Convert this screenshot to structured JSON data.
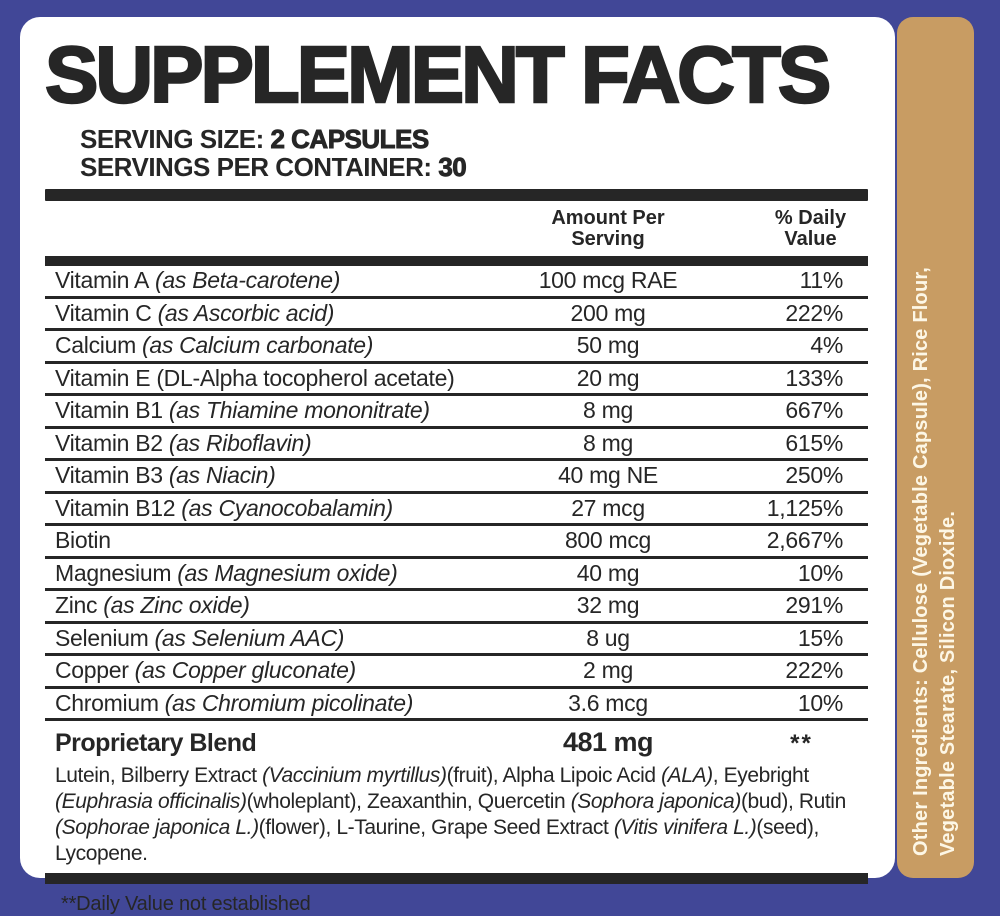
{
  "colors": {
    "border_blue": "#414797",
    "strip_tan": "#C89C63",
    "ink": "#262626",
    "card_bg": "#FFFFFF",
    "strip_text": "#FDF7E6"
  },
  "header": {
    "title": "SUPPLEMENT FACTS",
    "serving_size": [
      {
        "text": "SERVING SIZE: "
      },
      {
        "text": "2 CAPSULES",
        "bold": true
      }
    ],
    "servings_per_container": [
      {
        "text": "SERVINGS PER CONTAINER: "
      },
      {
        "text": "30",
        "bold": true
      }
    ]
  },
  "table": {
    "col_amount": "Amount Per\nServing",
    "col_daily_value": "% Daily\nValue",
    "rows": [
      {
        "name": "Vitamin A",
        "qualifier": "(as Beta-carotene)",
        "amount": "100 mcg RAE",
        "dv": "11%"
      },
      {
        "name": "Vitamin C",
        "qualifier": "(as Ascorbic acid)",
        "amount": "200 mg",
        "dv": "222%"
      },
      {
        "name": "Calcium",
        "qualifier": "(as Calcium carbonate)",
        "amount": "50 mg",
        "dv": "4%"
      },
      {
        "name": "Vitamin E",
        "qualifier_plain": "(DL-Alpha tocopherol acetate)",
        "amount": "20 mg",
        "dv": "133%"
      },
      {
        "name": "Vitamin B1",
        "qualifier": "(as Thiamine mononitrate)",
        "amount": "8 mg",
        "dv": "667%"
      },
      {
        "name": "Vitamin B2",
        "qualifier": "(as Riboflavin)",
        "amount": "8 mg",
        "dv": "615%"
      },
      {
        "name": "Vitamin B3",
        "qualifier": "(as Niacin)",
        "amount": "40 mg NE",
        "dv": "250%"
      },
      {
        "name": "Vitamin B12",
        "qualifier": "(as Cyanocobalamin)",
        "amount": "27 mcg",
        "dv": "1,125%"
      },
      {
        "name": "Biotin",
        "amount": "800 mcg",
        "dv": "2,667%"
      },
      {
        "name": "Magnesium",
        "qualifier": "(as Magnesium oxide)",
        "amount": "40 mg",
        "dv": "10%"
      },
      {
        "name": "Zinc",
        "qualifier": "(as Zinc oxide)",
        "amount": "32 mg",
        "dv": "291%"
      },
      {
        "name": "Selenium",
        "qualifier": "(as Selenium AAC)",
        "amount": "8 ug",
        "dv": "15%"
      },
      {
        "name": "Copper",
        "qualifier": "(as Copper gluconate)",
        "amount": "2 mg",
        "dv": "222%"
      },
      {
        "name": "Chromium",
        "qualifier": "(as Chromium picolinate)",
        "amount": "3.6 mcg",
        "dv": "10%"
      }
    ]
  },
  "blend": {
    "name": "Proprietary Blend",
    "amount": "481 mg",
    "dv": "**",
    "description": [
      {
        "text": "Lutein, Bilberry Extract "
      },
      {
        "text": "(Vaccinium myrtillus)",
        "italic": true
      },
      {
        "text": "(fruit), Alpha Lipoic Acid "
      },
      {
        "text": "(ALA)",
        "italic": true
      },
      {
        "text": ", Eyebright "
      },
      {
        "text": "(Euphrasia officinalis)",
        "italic": true
      },
      {
        "text": "(wholeplant), Zeaxanthin, Quercetin "
      },
      {
        "text": "(Sophora japonica)",
        "italic": true
      },
      {
        "text": "(bud), Rutin "
      },
      {
        "text": "(Sophorae japonica L.)",
        "italic": true
      },
      {
        "text": "(flower), L-Taurine, Grape Seed Extract "
      },
      {
        "text": "(Vitis vinifera L.)",
        "italic": true
      },
      {
        "text": "(seed), Lycopene."
      }
    ]
  },
  "footnote": "**Daily Value not established",
  "side_strip": {
    "line1": [
      {
        "text": "Other Ingredients: ",
        "bold": true
      },
      {
        "text": "Cellulose (Vegetable Capsule),  Rice Flour,"
      }
    ],
    "line2": [
      {
        "text": "Vegetable Stearate, Silicon Dioxide."
      }
    ]
  }
}
